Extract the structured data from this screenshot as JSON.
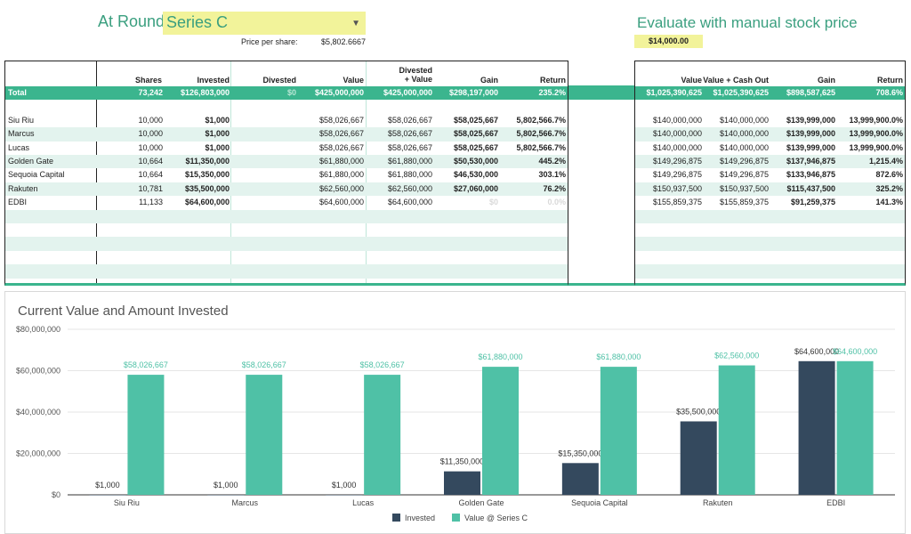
{
  "header": {
    "round_label": "At Round:",
    "round_value": "Series C",
    "price_label": "Price per share:",
    "price_value": "$5,802.6667",
    "eval_title": "Evaluate with manual stock price",
    "eval_value": "$14,000.00"
  },
  "left_table": {
    "headers": [
      "Shares",
      "Invested",
      "Divested",
      "Value",
      "Divested + Value",
      "Gain",
      "Return"
    ],
    "total": {
      "name": "Total",
      "shares": "73,242",
      "invested": "$126,803,000",
      "divested": "$0",
      "value": "$425,000,000",
      "div_value": "$425,000,000",
      "gain": "$298,197,000",
      "return": "235.2%"
    },
    "rows": [
      {
        "name": "Siu Riu",
        "shares": "10,000",
        "invested": "$1,000",
        "divested": "",
        "value": "$58,026,667",
        "div_value": "$58,026,667",
        "gain": "$58,025,667",
        "return": "5,802,566.7%"
      },
      {
        "name": "Marcus",
        "shares": "10,000",
        "invested": "$1,000",
        "divested": "",
        "value": "$58,026,667",
        "div_value": "$58,026,667",
        "gain": "$58,025,667",
        "return": "5,802,566.7%"
      },
      {
        "name": "Lucas",
        "shares": "10,000",
        "invested": "$1,000",
        "divested": "",
        "value": "$58,026,667",
        "div_value": "$58,026,667",
        "gain": "$58,025,667",
        "return": "5,802,566.7%"
      },
      {
        "name": "Golden Gate",
        "shares": "10,664",
        "invested": "$11,350,000",
        "divested": "",
        "value": "$61,880,000",
        "div_value": "$61,880,000",
        "gain": "$50,530,000",
        "return": "445.2%"
      },
      {
        "name": "Sequoia Capital",
        "shares": "10,664",
        "invested": "$15,350,000",
        "divested": "",
        "value": "$61,880,000",
        "div_value": "$61,880,000",
        "gain": "$46,530,000",
        "return": "303.1%"
      },
      {
        "name": "Rakuten",
        "shares": "10,781",
        "invested": "$35,500,000",
        "divested": "",
        "value": "$62,560,000",
        "div_value": "$62,560,000",
        "gain": "$27,060,000",
        "return": "76.2%"
      },
      {
        "name": "EDBI",
        "shares": "11,133",
        "invested": "$64,600,000",
        "divested": "",
        "value": "$64,600,000",
        "div_value": "$64,600,000",
        "gain": "$0",
        "return": "0.0%"
      }
    ]
  },
  "right_table": {
    "headers": [
      "Value",
      "Value + Cash Out",
      "Gain",
      "Return"
    ],
    "total": {
      "value": "$1,025,390,625",
      "value_cash": "$1,025,390,625",
      "gain": "$898,587,625",
      "return": "708.6%"
    },
    "rows": [
      {
        "value": "$140,000,000",
        "value_cash": "$140,000,000",
        "gain": "$139,999,000",
        "return": "13,999,900.0%"
      },
      {
        "value": "$140,000,000",
        "value_cash": "$140,000,000",
        "gain": "$139,999,000",
        "return": "13,999,900.0%"
      },
      {
        "value": "$140,000,000",
        "value_cash": "$140,000,000",
        "gain": "$139,999,000",
        "return": "13,999,900.0%"
      },
      {
        "value": "$149,296,875",
        "value_cash": "$149,296,875",
        "gain": "$137,946,875",
        "return": "1,215.4%"
      },
      {
        "value": "$149,296,875",
        "value_cash": "$149,296,875",
        "gain": "$133,946,875",
        "return": "872.6%"
      },
      {
        "value": "$150,937,500",
        "value_cash": "$150,937,500",
        "gain": "$115,437,500",
        "return": "325.2%"
      },
      {
        "value": "$155,859,375",
        "value_cash": "$155,859,375",
        "gain": "$91,259,375",
        "return": "141.3%"
      }
    ]
  },
  "colors": {
    "accent": "#3bb58e",
    "band": "#e3f3ee",
    "highlight": "#f2f39a",
    "invested": "#34495e",
    "value": "#4fc1a6"
  },
  "chart_data": {
    "type": "bar",
    "title": "Current Value and Amount Invested",
    "categories": [
      "Siu Riu",
      "Marcus",
      "Lucas",
      "Golden Gate",
      "Sequoia Capital",
      "Rakuten",
      "EDBI"
    ],
    "series": [
      {
        "name": "Invested",
        "values": [
          1000,
          1000,
          1000,
          11350000,
          15350000,
          35500000,
          64600000
        ],
        "labels": [
          "$1,000",
          "$1,000",
          "$1,000",
          "$11,350,000",
          "$15,350,000",
          "$35,500,000",
          "$64,600,000"
        ]
      },
      {
        "name": "Value @ Series C",
        "values": [
          58026667,
          58026667,
          58026667,
          61880000,
          61880000,
          62560000,
          64600000
        ],
        "labels": [
          "$58,026,667",
          "$58,026,667",
          "$58,026,667",
          "$61,880,000",
          "$61,880,000",
          "$62,560,000",
          "$64,600,000"
        ]
      }
    ],
    "yticks": [
      "$0",
      "$20,000,000",
      "$40,000,000",
      "$60,000,000",
      "$80,000,000"
    ],
    "ylim": [
      0,
      80000000
    ],
    "grid": true,
    "legend": "bottom"
  }
}
